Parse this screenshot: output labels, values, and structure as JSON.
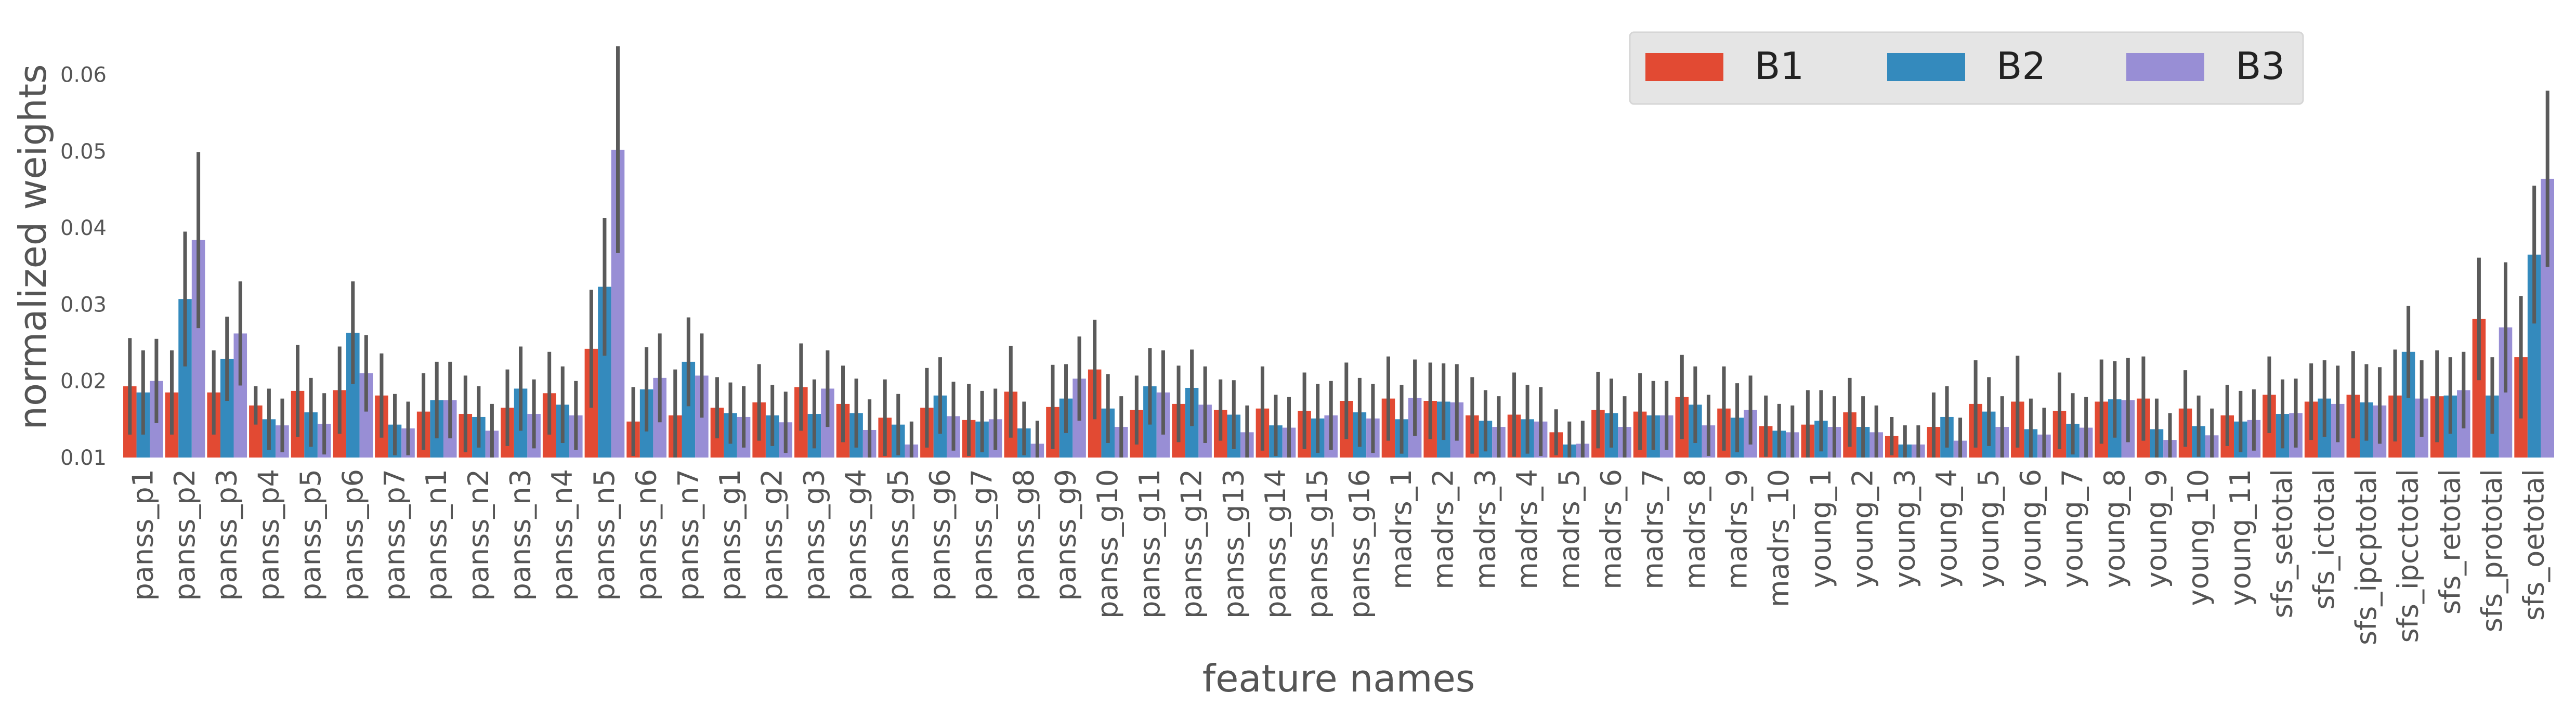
{
  "chart_data": {
    "type": "bar",
    "title": "",
    "xlabel": "feature names",
    "ylabel": "normalized weights",
    "ylim": [
      0.01,
      0.065
    ],
    "yticks": [
      0.01,
      0.02,
      0.03,
      0.04,
      0.05,
      0.06
    ],
    "ytick_labels": [
      "0.01",
      "0.02",
      "0.03",
      "0.04",
      "0.05",
      "0.06"
    ],
    "grid": false,
    "legend_position": "top-right",
    "error_bar_color": "#5a5a5a",
    "categories": [
      "panss_p1",
      "panss_p2",
      "panss_p3",
      "panss_p4",
      "panss_p5",
      "panss_p6",
      "panss_p7",
      "panss_n1",
      "panss_n2",
      "panss_n3",
      "panss_n4",
      "panss_n5",
      "panss_n6",
      "panss_n7",
      "panss_g1",
      "panss_g2",
      "panss_g3",
      "panss_g4",
      "panss_g5",
      "panss_g6",
      "panss_g7",
      "panss_g8",
      "panss_g9",
      "panss_g10",
      "panss_g11",
      "panss_g12",
      "panss_g13",
      "panss_g14",
      "panss_g15",
      "panss_g16",
      "madrs_1",
      "madrs_2",
      "madrs_3",
      "madrs_4",
      "madrs_5",
      "madrs_6",
      "madrs_7",
      "madrs_8",
      "madrs_9",
      "madrs_10",
      "young_1",
      "young_2",
      "young_3",
      "young_4",
      "young_5",
      "young_6",
      "young_7",
      "young_8",
      "young_9",
      "young_10",
      "young_11",
      "sfs_setotal",
      "sfs_ictotal",
      "sfs_ipcptotal",
      "sfs_ipcctotal",
      "sfs_retotal",
      "sfs_prototal",
      "sfs_oetotal"
    ],
    "series": [
      {
        "name": "B1",
        "color": "#e24a33",
        "values": [
          0.0193,
          0.0185,
          0.0185,
          0.0168,
          0.0187,
          0.0188,
          0.0181,
          0.016,
          0.0157,
          0.0165,
          0.0184,
          0.0242,
          0.0147,
          0.0155,
          0.0165,
          0.0172,
          0.0192,
          0.017,
          0.0152,
          0.0165,
          0.0149,
          0.0186,
          0.0166,
          0.0215,
          0.0162,
          0.017,
          0.0162,
          0.0164,
          0.0161,
          0.0174,
          0.0177,
          0.0174,
          0.0155,
          0.0156,
          0.0133,
          0.0162,
          0.016,
          0.0179,
          0.0164,
          0.0141,
          0.0143,
          0.0159,
          0.0128,
          0.014,
          0.017,
          0.0173,
          0.0161,
          0.0173,
          0.0177,
          0.0164,
          0.0155,
          0.0182,
          0.0173,
          0.0182,
          0.0181,
          0.018,
          0.0281,
          0.0231
        ],
        "err": [
          0.0063,
          0.0055,
          0.0055,
          0.0025,
          0.006,
          0.0057,
          0.0055,
          0.005,
          0.005,
          0.005,
          0.0054,
          0.0077,
          0.0045,
          0.006,
          0.004,
          0.005,
          0.0057,
          0.005,
          0.005,
          0.0052,
          0.0047,
          0.006,
          0.0055,
          0.0065,
          0.0045,
          0.005,
          0.004,
          0.0055,
          0.005,
          0.005,
          0.0055,
          0.005,
          0.005,
          0.0055,
          0.003,
          0.005,
          0.005,
          0.0055,
          0.0055,
          0.004,
          0.0045,
          0.0045,
          0.0025,
          0.0045,
          0.0057,
          0.006,
          0.005,
          0.0055,
          0.0055,
          0.005,
          0.004,
          0.005,
          0.005,
          0.0057,
          0.006,
          0.006,
          0.008,
          0.008
        ]
      },
      {
        "name": "B2",
        "color": "#348abd",
        "values": [
          0.0185,
          0.0307,
          0.0229,
          0.015,
          0.0159,
          0.0263,
          0.0143,
          0.0175,
          0.0153,
          0.019,
          0.0169,
          0.0323,
          0.0189,
          0.0225,
          0.0158,
          0.0155,
          0.0157,
          0.0158,
          0.0143,
          0.0181,
          0.0147,
          0.0138,
          0.0177,
          0.0164,
          0.0193,
          0.0191,
          0.0156,
          0.0142,
          0.0151,
          0.0159,
          0.015,
          0.0173,
          0.0148,
          0.015,
          0.0117,
          0.0158,
          0.0155,
          0.0169,
          0.0152,
          0.0135,
          0.0148,
          0.014,
          0.0117,
          0.0153,
          0.016,
          0.0137,
          0.0144,
          0.0176,
          0.0137,
          0.0141,
          0.0147,
          0.0157,
          0.0177,
          0.0172,
          0.0238,
          0.0181,
          0.0181,
          0.0365
        ],
        "err": [
          0.0055,
          0.0088,
          0.0055,
          0.004,
          0.0045,
          0.0067,
          0.004,
          0.005,
          0.004,
          0.0055,
          0.005,
          0.009,
          0.0055,
          0.0058,
          0.004,
          0.004,
          0.0045,
          0.0045,
          0.004,
          0.005,
          0.004,
          0.0035,
          0.0045,
          0.0045,
          0.005,
          0.005,
          0.0045,
          0.004,
          0.0045,
          0.0045,
          0.0045,
          0.005,
          0.004,
          0.0045,
          0.003,
          0.0045,
          0.0045,
          0.005,
          0.0045,
          0.0035,
          0.004,
          0.004,
          0.0025,
          0.004,
          0.0045,
          0.004,
          0.004,
          0.005,
          0.004,
          0.004,
          0.004,
          0.0045,
          0.005,
          0.005,
          0.006,
          0.005,
          0.005,
          0.009
        ]
      },
      {
        "name": "B3",
        "color": "#988ed5",
        "values": [
          0.02,
          0.0384,
          0.0262,
          0.0142,
          0.0144,
          0.021,
          0.0138,
          0.0175,
          0.0135,
          0.0157,
          0.0155,
          0.0502,
          0.0204,
          0.0207,
          0.0153,
          0.0146,
          0.019,
          0.0136,
          0.0117,
          0.0154,
          0.015,
          0.0118,
          0.0203,
          0.014,
          0.0185,
          0.0169,
          0.0133,
          0.0139,
          0.0155,
          0.0151,
          0.0178,
          0.0172,
          0.014,
          0.0147,
          0.0118,
          0.014,
          0.0155,
          0.0142,
          0.0162,
          0.0133,
          0.014,
          0.0133,
          0.0117,
          0.0122,
          0.014,
          0.013,
          0.0139,
          0.0175,
          0.0123,
          0.0129,
          0.0149,
          0.0158,
          0.017,
          0.0168,
          0.0177,
          0.0188,
          0.027,
          0.0464
        ],
        "err": [
          0.0055,
          0.0115,
          0.0068,
          0.0035,
          0.004,
          0.005,
          0.0035,
          0.005,
          0.0035,
          0.0045,
          0.0045,
          0.0135,
          0.0058,
          0.0055,
          0.004,
          0.004,
          0.005,
          0.004,
          0.003,
          0.0045,
          0.004,
          0.003,
          0.0055,
          0.004,
          0.0055,
          0.005,
          0.0035,
          0.004,
          0.0045,
          0.0045,
          0.005,
          0.005,
          0.004,
          0.0045,
          0.003,
          0.004,
          0.0045,
          0.004,
          0.0045,
          0.0035,
          0.004,
          0.0035,
          0.0025,
          0.003,
          0.004,
          0.0035,
          0.004,
          0.0055,
          0.0035,
          0.0035,
          0.004,
          0.0045,
          0.005,
          0.005,
          0.005,
          0.005,
          0.0085,
          0.0115
        ]
      }
    ]
  }
}
